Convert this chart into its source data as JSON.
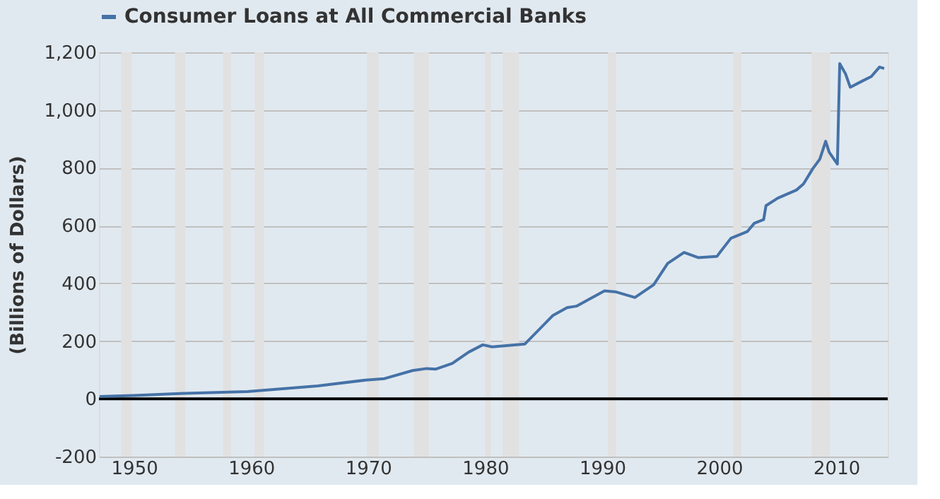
{
  "chart_data": {
    "type": "line",
    "ylabel": "(Billions of Dollars)",
    "x": [
      1947.05,
      1950,
      1953.6,
      1959.7,
      1965.7,
      1969.8,
      1971.4,
      1973.8,
      1975,
      1975.8,
      1977.2,
      1978.6,
      1979.8,
      1980.6,
      1983.4,
      1985.8,
      1987,
      1987.8,
      1990.2,
      1991.2,
      1992.8,
      1994.4,
      1995.6,
      1997,
      1998.2,
      1999.8,
      2001,
      2002.4,
      2003,
      2003.8,
      2004,
      2005,
      2006.6,
      2007.2,
      2008,
      2008.6,
      2009.1,
      2009.4,
      2010.1,
      2010.3,
      2010.8,
      2011.2,
      2012.2,
      2013,
      2013.7,
      2014.1
    ],
    "series": [
      {
        "name": "Consumer Loans at All Commercial Banks",
        "color": "#4572a7",
        "values": [
          8,
          12,
          18,
          25,
          45,
          65,
          70,
          98,
          105,
          103,
          123,
          162,
          187,
          180,
          190,
          289,
          316,
          321,
          374,
          370,
          351,
          395,
          469,
          507,
          489,
          493,
          556,
          579,
          608,
          621,
          669,
          695,
          723,
          744,
          797,
          830,
          892,
          854,
          813,
          1161,
          1125,
          1079,
          1100,
          1116,
          1149,
          1144
        ]
      }
    ],
    "xlim": [
      1947,
      2014.4
    ],
    "xticks": [
      1950,
      1960,
      1970,
      1980,
      1990,
      2000,
      2010
    ],
    "ylim": [
      -200,
      1200
    ],
    "yticks": [
      -200,
      0,
      200,
      400,
      600,
      800,
      {
        "value": 1000,
        "label": "1,000"
      },
      {
        "value": 1200,
        "label": "1,200"
      }
    ],
    "grid": "y",
    "legend": "top",
    "line_style": "solid",
    "marker": "none",
    "ref_lines": [
      {
        "axis": "y",
        "value": 0,
        "color": "#000000"
      }
    ],
    "bands": [
      {
        "axis": "x",
        "from": 1948.9,
        "to": 1949.8,
        "color": "#e1e1e1"
      },
      {
        "axis": "x",
        "from": 1953.5,
        "to": 1954.4,
        "color": "#e1e1e1"
      },
      {
        "axis": "x",
        "from": 1957.6,
        "to": 1958.3,
        "color": "#e1e1e1"
      },
      {
        "axis": "x",
        "from": 1960.3,
        "to": 1961.1,
        "color": "#e1e1e1"
      },
      {
        "axis": "x",
        "from": 1969.9,
        "to": 1970.9,
        "color": "#e1e1e1"
      },
      {
        "axis": "x",
        "from": 1973.9,
        "to": 1975.2,
        "color": "#e1e1e1"
      },
      {
        "axis": "x",
        "from": 1980.0,
        "to": 1980.5,
        "color": "#e1e1e1"
      },
      {
        "axis": "x",
        "from": 1981.5,
        "to": 1982.9,
        "color": "#e1e1e1"
      },
      {
        "axis": "x",
        "from": 1990.5,
        "to": 1991.2,
        "color": "#e1e1e1"
      },
      {
        "axis": "x",
        "from": 2001.2,
        "to": 2001.9,
        "color": "#e1e1e1"
      },
      {
        "axis": "x",
        "from": 2007.9,
        "to": 2009.5,
        "color": "#e1e1e1"
      }
    ]
  }
}
